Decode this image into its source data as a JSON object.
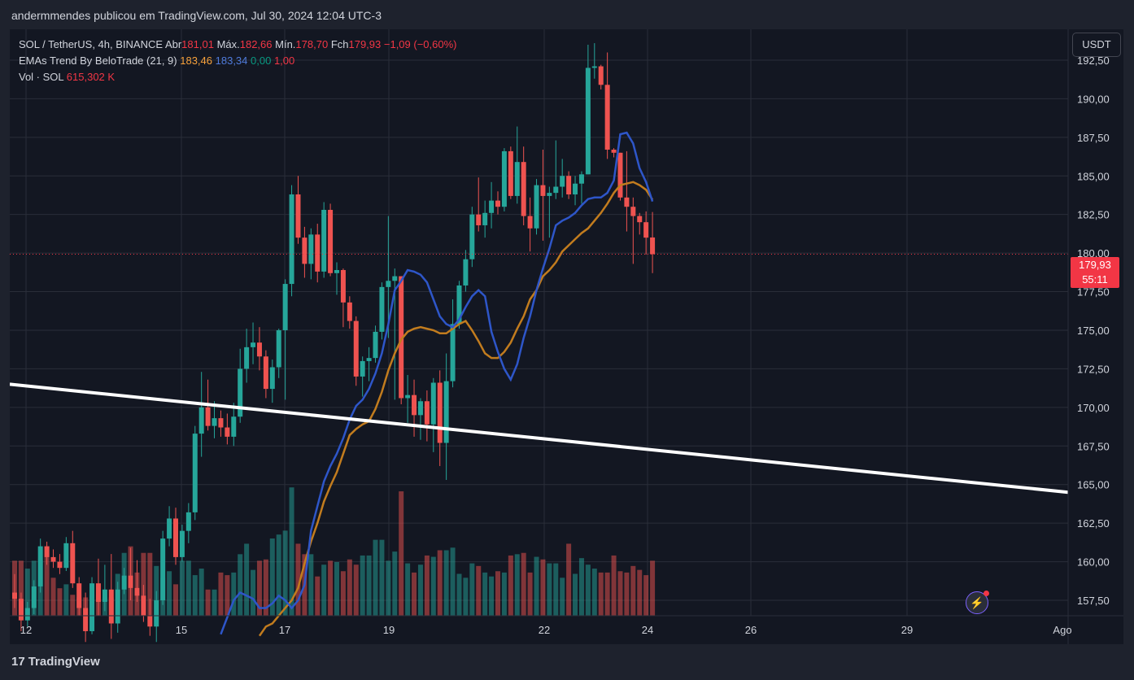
{
  "caption": "andermmendes publicou em TradingView.com, Jul 30, 2024 12:04 UTC-3",
  "legend": {
    "symbol": "SOL / TetherUS, 4h, BINANCE",
    "open_label": "Abr",
    "open": "181,01",
    "high_label": "Máx.",
    "high": "182,66",
    "low_label": "Mín.",
    "low": "178,70",
    "close_label": "Fch",
    "close": "179,93",
    "change": "−1,09 (−0,60%)",
    "ema_name": "EMAs Trend By BeloTrade (21, 9)",
    "ema_slow": "183,46",
    "ema_fast": "183,34",
    "ema_v1": "0,00",
    "ema_v2": "1,00",
    "vol_name": "Vol · SOL",
    "vol_value": "615,302 K"
  },
  "unit": "USDT",
  "last_price": "179,93",
  "countdown": "55:11",
  "brand": "TradingView",
  "brand_mark": "17",
  "colors": {
    "up": "#26a69a",
    "down": "#ef5350",
    "ema_fast": "#2e56c9",
    "ema_slow": "#c27c1e",
    "trend": "#ffffff"
  },
  "chart_data": {
    "type": "candlestick",
    "interval": "4h",
    "y_axis": {
      "min": 156.5,
      "max": 194.5,
      "ticks": [
        "157,50",
        "160,00",
        "162,50",
        "165,00",
        "167,50",
        "170,00",
        "172,50",
        "175,00",
        "177,50",
        "180,00",
        "182,50",
        "185,00",
        "187,50",
        "190,00",
        "192,50"
      ]
    },
    "x_axis": {
      "ticks": [
        "12",
        "15",
        "17",
        "19",
        "22",
        "24",
        "26",
        "29",
        "Ago"
      ]
    },
    "candles_ohlc": [
      [
        158.0,
        159.2,
        157.0,
        157.6
      ],
      [
        157.6,
        158.0,
        155.5,
        156.2
      ],
      [
        156.2,
        157.4,
        155.8,
        157.0
      ],
      [
        157.0,
        158.8,
        156.6,
        158.4
      ],
      [
        158.4,
        161.5,
        158.0,
        161.0
      ],
      [
        161.0,
        161.3,
        159.8,
        160.3
      ],
      [
        160.3,
        160.8,
        159.6,
        160.0
      ],
      [
        160.0,
        160.5,
        159.2,
        159.6
      ],
      [
        159.6,
        161.6,
        159.4,
        161.2
      ],
      [
        161.2,
        162.0,
        158.3,
        158.6
      ],
      [
        158.6,
        159.0,
        156.5,
        157.0
      ],
      [
        157.0,
        158.0,
        154.8,
        155.5
      ],
      [
        155.5,
        159.0,
        155.3,
        158.6
      ],
      [
        158.6,
        160.2,
        156.5,
        157.4
      ],
      [
        157.4,
        159.8,
        156.8,
        158.2
      ],
      [
        158.2,
        160.5,
        155.0,
        156.0
      ],
      [
        156.0,
        158.7,
        155.4,
        158.2
      ],
      [
        158.2,
        159.6,
        157.9,
        159.1
      ],
      [
        159.1,
        160.9,
        157.5,
        158.3
      ],
      [
        158.3,
        160.1,
        157.4,
        157.8
      ],
      [
        157.8,
        158.5,
        156.1,
        156.5
      ],
      [
        156.5,
        157.6,
        155.2,
        155.8
      ],
      [
        155.8,
        158.1,
        154.8,
        157.5
      ],
      [
        157.5,
        162.0,
        157.2,
        161.5
      ],
      [
        161.5,
        163.6,
        161.0,
        162.8
      ],
      [
        162.8,
        163.5,
        159.8,
        160.3
      ],
      [
        160.3,
        162.4,
        160.0,
        162.0
      ],
      [
        162.0,
        163.8,
        161.2,
        163.2
      ],
      [
        163.2,
        168.8,
        162.7,
        168.3
      ],
      [
        168.3,
        172.3,
        166.8,
        170.0
      ],
      [
        170.0,
        171.8,
        168.5,
        168.8
      ],
      [
        168.8,
        170.4,
        168.0,
        169.3
      ],
      [
        169.3,
        169.8,
        168.1,
        168.7
      ],
      [
        168.7,
        169.6,
        167.6,
        168.1
      ],
      [
        168.1,
        170.3,
        167.5,
        169.4
      ],
      [
        169.4,
        173.8,
        169.0,
        172.5
      ],
      [
        172.5,
        175.1,
        171.6,
        173.9
      ],
      [
        173.9,
        175.5,
        172.8,
        174.2
      ],
      [
        174.2,
        175.2,
        172.4,
        173.3
      ],
      [
        173.3,
        173.7,
        170.6,
        171.2
      ],
      [
        171.2,
        173.1,
        170.3,
        172.6
      ],
      [
        172.6,
        175.1,
        171.9,
        175.0
      ],
      [
        175.0,
        178.3,
        170.5,
        178.0
      ],
      [
        178.0,
        184.4,
        177.2,
        183.8
      ],
      [
        183.8,
        185.0,
        180.6,
        181.0
      ],
      [
        181.0,
        181.7,
        178.4,
        179.3
      ],
      [
        179.3,
        181.6,
        178.3,
        181.2
      ],
      [
        181.2,
        181.9,
        178.1,
        178.8
      ],
      [
        178.8,
        183.3,
        178.4,
        182.8
      ],
      [
        182.8,
        183.2,
        178.5,
        178.7
      ],
      [
        178.7,
        179.4,
        177.3,
        178.9
      ],
      [
        178.9,
        179.0,
        175.2,
        176.8
      ],
      [
        176.8,
        177.2,
        175.1,
        175.6
      ],
      [
        175.6,
        175.9,
        171.4,
        172.0
      ],
      [
        172.0,
        173.3,
        170.7,
        173.0
      ],
      [
        173.0,
        173.9,
        171.7,
        173.2
      ],
      [
        173.2,
        175.3,
        172.9,
        174.9
      ],
      [
        174.9,
        178.1,
        174.4,
        177.8
      ],
      [
        177.8,
        182.4,
        174.5,
        178.2
      ],
      [
        178.2,
        179.0,
        170.5,
        178.5
      ],
      [
        178.5,
        178.5,
        170.2,
        170.6
      ],
      [
        170.6,
        172.1,
        169.0,
        170.8
      ],
      [
        170.8,
        171.8,
        168.1,
        169.5
      ],
      [
        169.5,
        170.6,
        167.9,
        170.4
      ],
      [
        170.4,
        171.1,
        167.8,
        168.9
      ],
      [
        168.9,
        171.9,
        167.1,
        171.6
      ],
      [
        171.6,
        172.4,
        166.2,
        167.7
      ],
      [
        167.7,
        173.5,
        165.3,
        171.7
      ],
      [
        171.7,
        177.0,
        171.3,
        175.4
      ],
      [
        175.4,
        178.2,
        175.1,
        177.9
      ],
      [
        177.9,
        180.2,
        177.5,
        179.6
      ],
      [
        179.6,
        183.0,
        179.1,
        182.5
      ],
      [
        182.5,
        184.9,
        181.4,
        181.8
      ],
      [
        181.8,
        183.4,
        181.0,
        182.6
      ],
      [
        182.6,
        184.6,
        181.6,
        183.4
      ],
      [
        183.4,
        184.0,
        182.5,
        183.0
      ],
      [
        183.0,
        186.8,
        182.7,
        186.6
      ],
      [
        186.6,
        186.9,
        183.5,
        183.7
      ],
      [
        183.7,
        188.2,
        183.2,
        185.9
      ],
      [
        185.9,
        186.9,
        181.8,
        182.4
      ],
      [
        182.4,
        183.6,
        180.1,
        181.6
      ],
      [
        181.6,
        184.8,
        181.2,
        184.4
      ],
      [
        184.4,
        186.7,
        180.8,
        183.7
      ],
      [
        183.7,
        184.3,
        181.0,
        183.9
      ],
      [
        183.9,
        187.3,
        183.5,
        184.3
      ],
      [
        184.3,
        186.1,
        183.6,
        185.0
      ],
      [
        185.0,
        185.3,
        183.5,
        183.8
      ],
      [
        183.8,
        185.0,
        183.1,
        184.5
      ],
      [
        184.5,
        185.3,
        183.2,
        185.1
      ],
      [
        185.1,
        193.5,
        185.1,
        192.0
      ],
      [
        192.0,
        193.6,
        191.3,
        192.1
      ],
      [
        192.1,
        192.2,
        190.6,
        190.9
      ],
      [
        190.9,
        193.0,
        186.1,
        186.7
      ],
      [
        186.7,
        186.8,
        186.2,
        186.5
      ],
      [
        186.5,
        186.5,
        183.4,
        183.6
      ],
      [
        183.6,
        186.6,
        181.4,
        183.0
      ],
      [
        183.0,
        183.6,
        179.3,
        182.4
      ],
      [
        182.4,
        182.6,
        181.2,
        182.0
      ],
      [
        182.0,
        182.7,
        179.9,
        181.0
      ],
      [
        181.01,
        182.66,
        178.7,
        179.93
      ]
    ],
    "volume_scale_max": 10,
    "volumes": [
      4.2,
      4.2,
      3.6,
      4.2,
      4.2,
      5.3,
      2.9,
      2.1,
      2.4,
      1.6,
      1.4,
      1.4,
      1.6,
      1.6,
      1.4,
      1.4,
      3.2,
      4.8,
      5.3,
      3.3,
      4.8,
      4.8,
      3.8,
      2.9,
      3.4,
      2.4,
      4.2,
      4.2,
      3.1,
      3.6,
      2.0,
      2.0,
      3.3,
      3.1,
      3.3,
      4.7,
      5.5,
      3.5,
      4.2,
      4.3,
      5.9,
      6.2,
      6.5,
      9.8,
      5.5,
      4.7,
      4.7,
      3.0,
      3.9,
      4.2,
      4.1,
      3.4,
      4.3,
      3.9,
      4.6,
      4.6,
      5.8,
      5.8,
      4.2,
      4.9,
      9.5,
      4.0,
      3.3,
      3.9,
      4.6,
      4.5,
      5.0,
      5.0,
      5.2,
      3.2,
      2.9,
      4.0,
      3.8,
      3.3,
      3.0,
      3.4,
      3.3,
      4.6,
      4.7,
      4.8,
      3.3,
      4.5,
      4.3,
      4.0,
      4.0,
      2.9,
      5.5,
      3.2,
      4.4,
      3.9,
      3.6,
      3.3,
      3.3,
      4.6,
      3.4,
      3.3,
      3.8,
      3.5,
      3.1,
      4.2
    ],
    "series": [
      {
        "name": "EMA (9)",
        "type": "line",
        "values": [
          155.3,
          156.4,
          157.5,
          158.0,
          157.8,
          157.6,
          157.0,
          157.0,
          157.3,
          157.8,
          157.5,
          157.0,
          157.5,
          158.5,
          162.0,
          163.6,
          165.2,
          166.2,
          167.0,
          168.0,
          169.2,
          170.1,
          170.5,
          171.2,
          172.2,
          173.5,
          175.4,
          177.6,
          178.2,
          178.9,
          178.8,
          178.6,
          178.1,
          177.0,
          175.9,
          175.4,
          175.2,
          175.7,
          176.5,
          177.2,
          177.6,
          177.2,
          174.9,
          173.6,
          172.5,
          171.8,
          172.8,
          174.5,
          175.9,
          177.6,
          179.0,
          180.3,
          181.8,
          182.1,
          182.3,
          182.6,
          183.1,
          183.5,
          183.6,
          183.6,
          183.9,
          184.7,
          187.7,
          187.8,
          187.1,
          185.5,
          184.6,
          183.34
        ]
      },
      {
        "name": "EMA (21)",
        "type": "line",
        "values": [
          155.2,
          155.8,
          156.0,
          156.5,
          157.0,
          157.5,
          158.3,
          159.9,
          161.3,
          162.5,
          163.9,
          164.9,
          165.8,
          167.0,
          168.2,
          168.6,
          168.9,
          169.1,
          169.9,
          171.0,
          172.4,
          173.5,
          174.4,
          174.9,
          175.1,
          175.2,
          175.1,
          175.0,
          174.8,
          174.8,
          175.1,
          175.4,
          175.6,
          175.0,
          174.3,
          173.5,
          173.2,
          173.2,
          173.6,
          174.2,
          175.1,
          175.9,
          177.0,
          177.6,
          178.5,
          178.9,
          179.4,
          180.1,
          180.5,
          180.9,
          181.3,
          181.6,
          182.1,
          182.6,
          183.2,
          183.9,
          184.4,
          184.5,
          184.6,
          184.4,
          184.1,
          183.46
        ]
      },
      {
        "name": "Trend line",
        "type": "line",
        "points": [
          [
            0,
            171.5
          ],
          [
            1,
            164.5
          ]
        ]
      }
    ]
  }
}
